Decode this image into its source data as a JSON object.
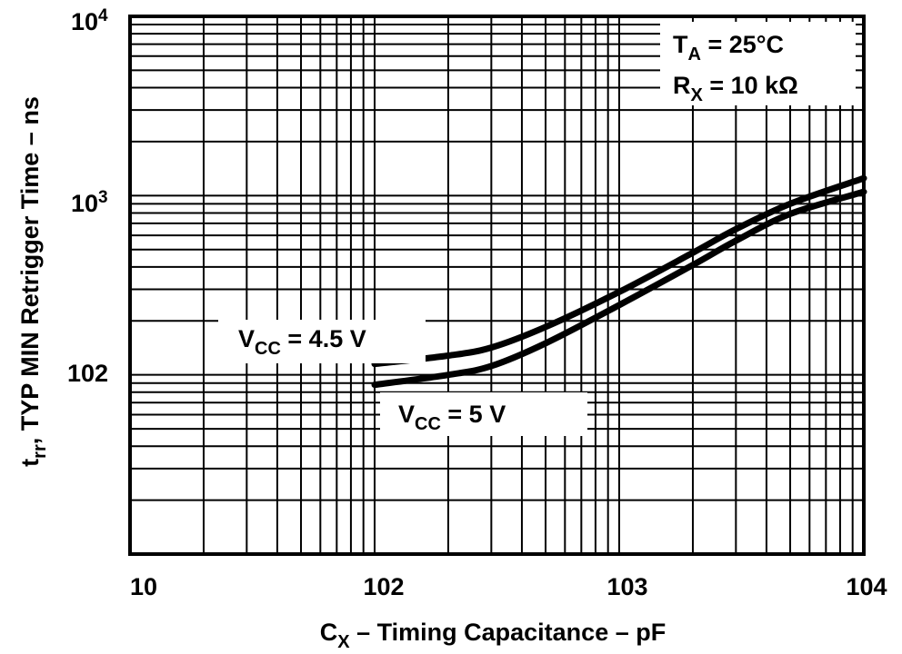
{
  "chart_data": {
    "type": "line",
    "xlabel": "C",
    "xlabel_sub": "X",
    "xlabel_rest": " – Timing Capacitance – pF",
    "ylabel": "t",
    "ylabel_sub": "rr",
    "ylabel_rest": ", TYP MIN Retrigger Time – ns",
    "x_scale": "log",
    "y_scale": "log",
    "xlim": [
      10,
      10000
    ],
    "ylim": [
      10,
      10000
    ],
    "grid": true,
    "x_ticks": [
      {
        "value": 10,
        "label": "10"
      },
      {
        "value": 100,
        "label": "102"
      },
      {
        "value": 1000,
        "label": "103"
      },
      {
        "value": 10000,
        "label": "104"
      }
    ],
    "y_ticks": [
      {
        "value": 10000,
        "base": "10",
        "exp": "4"
      },
      {
        "value": 1000,
        "base": "10",
        "exp": "3"
      },
      {
        "value": 100,
        "base": "102",
        "exp": ""
      }
    ],
    "annotations": {
      "ta_main": "T",
      "ta_sub": "A",
      "ta_rest": " = 25°C",
      "rx_main": "R",
      "rx_sub": "X",
      "rx_rest": " = 10 kΩ"
    },
    "series": [
      {
        "name": "4.5 V",
        "label_main": "V",
        "label_sub": "CC",
        "label_rest": " = 4.5 V",
        "x": [
          100,
          200,
          300,
          500,
          1000,
          2000,
          3000,
          5000,
          10000
        ],
        "y": [
          115,
          128,
          142,
          185,
          290,
          480,
          650,
          900,
          1250
        ]
      },
      {
        "name": "5 V",
        "label_main": "V",
        "label_sub": "CC",
        "label_rest": " = 5 V",
        "x": [
          100,
          200,
          300,
          500,
          1000,
          2000,
          3000,
          5000,
          10000
        ],
        "y": [
          88,
          100,
          112,
          150,
          245,
          410,
          560,
          790,
          1050
        ]
      }
    ],
    "colors": {
      "line": "#000000",
      "grid": "#000000",
      "background": "#ffffff"
    }
  }
}
